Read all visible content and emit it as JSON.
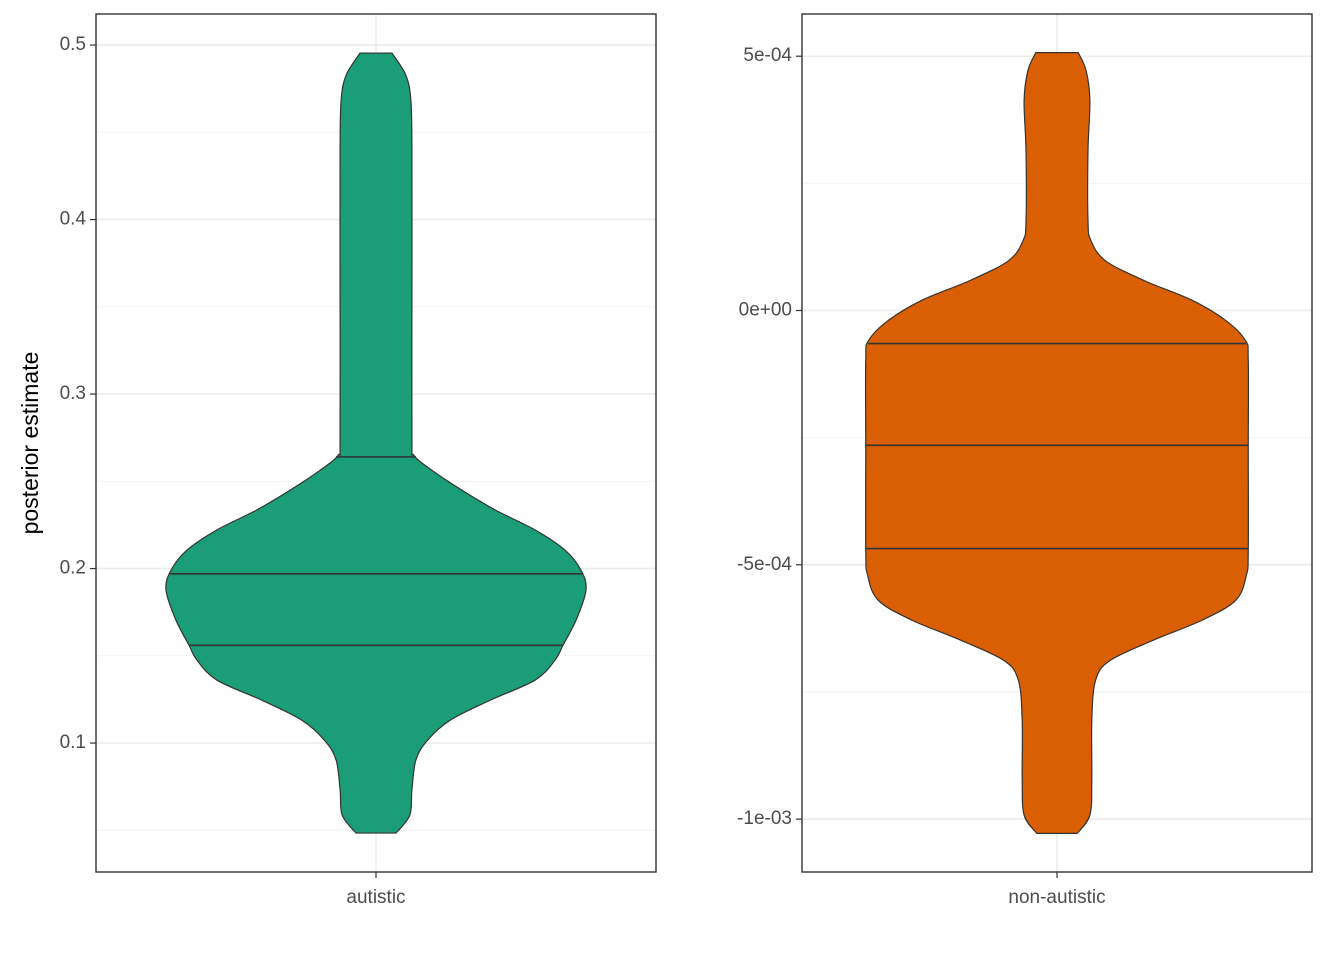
{
  "chart_data": [
    {
      "type": "violin",
      "y_label": "posterior estimate",
      "categories": [
        "autistic"
      ],
      "color": "#1b9e77",
      "ylim": [
        0.0261,
        0.5178
      ],
      "yticks": [
        0.1,
        0.2,
        0.3,
        0.4,
        0.5
      ],
      "minor_yticks": [
        0.05,
        0.15,
        0.25,
        0.35,
        0.45
      ],
      "grid": true,
      "quantiles": [
        0.156,
        0.197,
        0.264
      ],
      "density": {
        "y": [
          0.0484,
          0.0587,
          0.0731,
          0.0903,
          0.1017,
          0.1132,
          0.1246,
          0.1361,
          0.1476,
          0.1562,
          0.1705,
          0.1877,
          0.1991,
          0.2106,
          0.2221,
          0.2335,
          0.245,
          0.2564,
          0.265,
          0.2736,
          0.3539,
          0.4398,
          0.4685,
          0.4828,
          0.4954
        ],
        "width": [
          0.095,
          0.161,
          0.171,
          0.19,
          0.246,
          0.355,
          0.545,
          0.758,
          0.853,
          0.891,
          0.953,
          1.0,
          0.976,
          0.9,
          0.758,
          0.569,
          0.408,
          0.265,
          0.18,
          0.171,
          0.171,
          0.171,
          0.166,
          0.142,
          0.076
        ]
      }
    },
    {
      "type": "violin",
      "categories": [
        "non-autistic"
      ],
      "color": "#d95f02",
      "ylim": [
        -0.001104,
        0.000583
      ],
      "yticks": [
        {
          "value": -0.001,
          "label": "-1e-03"
        },
        {
          "value": -0.0005,
          "label": "-5e-04"
        },
        {
          "value": 0,
          "label": "0e+00"
        },
        {
          "value": 0.0005,
          "label": "5e-04"
        }
      ],
      "minor_yticks": [
        -0.00075,
        -0.00025,
        0.00025
      ],
      "grid": true,
      "quantiles": [
        -0.000468,
        -0.000265,
        -6.5e-05
      ],
      "density": {
        "y": [
          -0.001028,
          -0.000992,
          -0.000923,
          -0.000806,
          -0.000727,
          -0.000688,
          -0.000648,
          -0.000609,
          -0.00057,
          -0.000521,
          -0.000472,
          -0.000275,
          -9.8e-05,
          -5.9e-05,
          -2e-05,
          2e-05,
          5.9e-05,
          9.8e-05,
          0.000138,
          0.000177,
          0.000314,
          0.000413,
          0.000472,
          0.000507
        ],
        "width": [
          0.106,
          0.172,
          0.182,
          0.182,
          0.202,
          0.278,
          0.505,
          0.758,
          0.934,
          0.99,
          1.0,
          1.0,
          1.0,
          0.985,
          0.884,
          0.707,
          0.455,
          0.253,
          0.177,
          0.162,
          0.162,
          0.172,
          0.152,
          0.111
        ]
      }
    }
  ]
}
